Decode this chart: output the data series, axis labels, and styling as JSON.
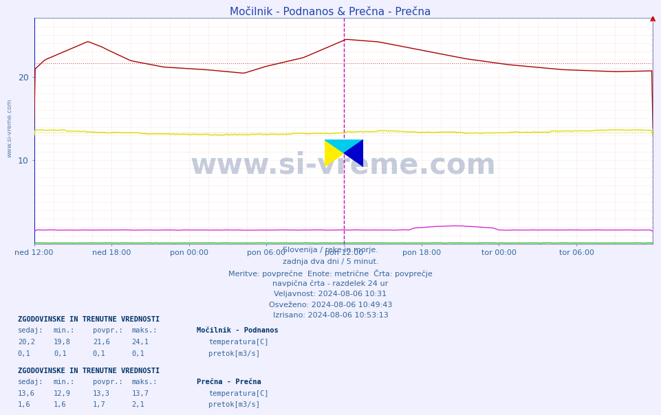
{
  "title": "Močilnik - Podnanos & Prečna - Prečna",
  "title_color": "#2244aa",
  "bg_color": "#f0f0ff",
  "plot_bg_color": "#ffffff",
  "ylim": [
    0,
    27
  ],
  "yticks": [
    10,
    20
  ],
  "n_points": 576,
  "x_tick_labels": [
    "ned 12:00",
    "ned 18:00",
    "pon 00:00",
    "pon 06:00",
    "pon 12:00",
    "pon 18:00",
    "tor 00:00",
    "tor 06:00"
  ],
  "x_tick_positions": [
    0,
    72,
    144,
    216,
    288,
    360,
    432,
    504
  ],
  "grid_color": "#ffaaaa",
  "vline_left_color": "#0000cc",
  "vline_mid_color": "#cc00cc",
  "mocilnik_temp_color": "#aa0000",
  "mocilnik_temp_avg_color": "#cc4444",
  "mocilnik_flow_color": "#00aa00",
  "precna_temp_color": "#dddd00",
  "precna_temp_avg_color": "#cccc44",
  "precna_flow_color": "#cc00cc",
  "mocilnik_temp_avg": 21.6,
  "precna_temp_avg": 13.3,
  "info_lines": [
    "Slovenija / reke in morje.",
    "zadnja dva dni / 5 minut.",
    "Meritve: povprečne  Enote: metrične  Črta: povprečje",
    "navpična črta - razdelek 24 ur",
    "Veljavnost: 2024-08-06 10:31",
    "Osveženo: 2024-08-06 10:49:43",
    "Izrisano: 2024-08-06 10:53:13"
  ],
  "section1_header": "ZGODOVINSKE IN TRENUTNE VREDNOSTI",
  "section1_cols": [
    "sedaj:",
    "min.:",
    "povpr.:",
    "maks.:"
  ],
  "section1_station": "Močilnik - Podnanos",
  "section1_row1_vals": [
    "20,2",
    "19,8",
    "21,6",
    "24,1"
  ],
  "section1_row1_label": "temperatura[C]",
  "section1_row2_vals": [
    "0,1",
    "0,1",
    "0,1",
    "0,1"
  ],
  "section1_row2_label": "pretok[m3/s]",
  "section2_header": "ZGODOVINSKE IN TRENUTNE VREDNOSTI",
  "section2_station": "Prečna - Prečna",
  "section2_row1_vals": [
    "13,6",
    "12,9",
    "13,3",
    "13,7"
  ],
  "section2_row1_label": "temperatura[C]",
  "section2_row2_vals": [
    "1,6",
    "1,6",
    "1,7",
    "2,1"
  ],
  "section2_row2_label": "pretok[m3/s]",
  "watermark": "www.si-vreme.com",
  "watermark_color": "#1a3a7a",
  "left_watermark": "www.si-vreme.com"
}
